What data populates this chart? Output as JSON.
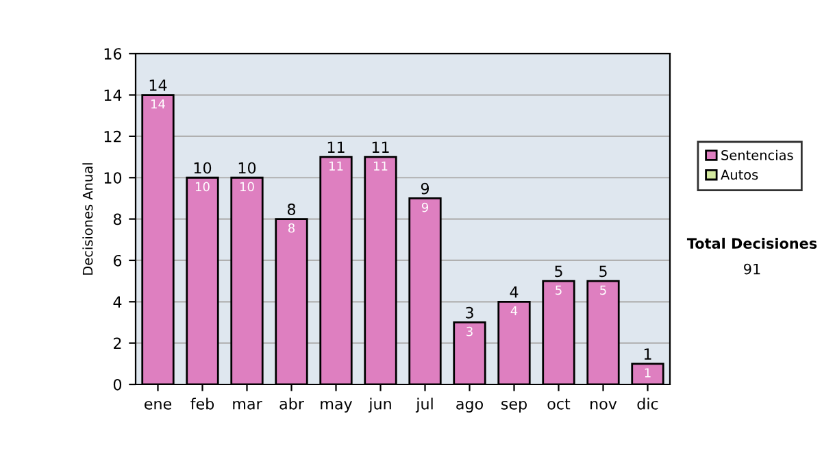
{
  "chart_data": {
    "type": "bar",
    "stacked": true,
    "ylabel": "Decisiones Anual",
    "categories": [
      "ene",
      "feb",
      "mar",
      "abr",
      "may",
      "jun",
      "jul",
      "ago",
      "sep",
      "oct",
      "nov",
      "dic"
    ],
    "series": [
      {
        "name": "Sentencias",
        "color": "#de7fc0",
        "values": [
          14,
          10,
          10,
          8,
          11,
          11,
          9,
          3,
          4,
          5,
          5,
          1
        ],
        "value_labels": [
          "14",
          "10",
          "10",
          "8",
          "11",
          "11",
          "9",
          "3",
          "4",
          "5",
          "5",
          "1"
        ]
      },
      {
        "name": "Autos",
        "color": "#d4eaa0",
        "values": [
          0,
          0,
          0,
          0,
          0,
          0,
          0,
          0,
          0,
          0,
          0,
          0
        ]
      }
    ],
    "totals": [
      "14",
      "10",
      "10",
      "8",
      "11",
      "11",
      "9",
      "3",
      "4",
      "5",
      "5",
      "1"
    ],
    "ylim": [
      0,
      16
    ],
    "yticks": [
      0,
      2,
      4,
      6,
      8,
      10,
      12,
      14,
      16
    ],
    "grid": "y",
    "legend": "right",
    "annotations": [
      "Total Decisiones",
      "91"
    ]
  }
}
